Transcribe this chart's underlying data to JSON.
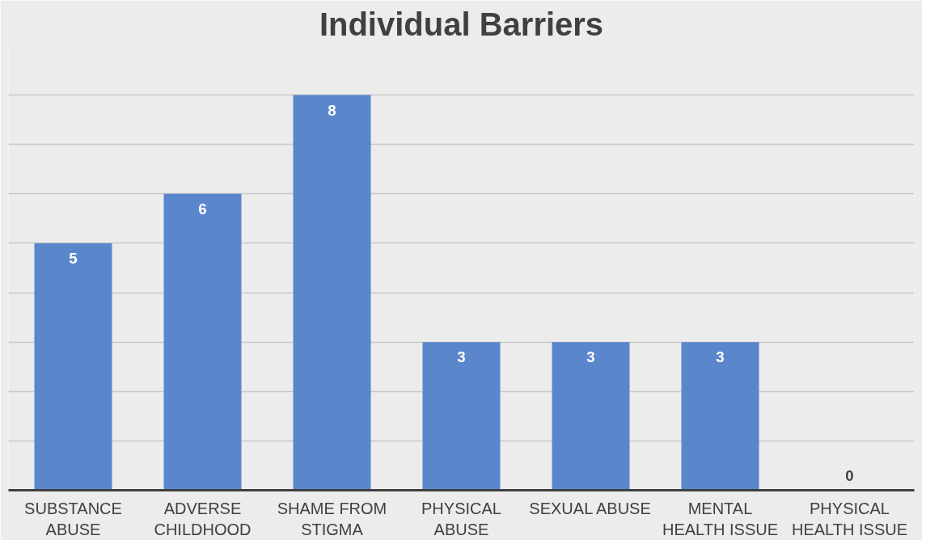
{
  "chart_data": {
    "type": "bar",
    "title": "Individual Barriers",
    "categories": [
      "SUBSTANCE\nABUSE",
      "ADVERSE\nCHILDHOOD",
      "SHAME FROM\nSTIGMA",
      "PHYSICAL\nABUSE",
      "SEXUAL ABUSE",
      "MENTAL\nHEALTH ISSUE",
      "PHYSICAL\nHEALTH ISSUE"
    ],
    "values": [
      5,
      6,
      8,
      3,
      3,
      3,
      0
    ],
    "color": "#5a86cc",
    "ylim": [
      0,
      9
    ],
    "yticks": [
      {
        "value": 0,
        "label": null
      },
      {
        "value": 1,
        "label": null
      },
      {
        "value": 2,
        "label": null
      },
      {
        "value": 3,
        "label": null
      },
      {
        "value": 4,
        "label": null
      },
      {
        "value": 5,
        "label": null
      },
      {
        "value": 6,
        "label": null
      },
      {
        "value": 7,
        "label": null
      },
      {
        "value": 8,
        "label": null
      },
      {
        "value": 9,
        "label": null
      }
    ],
    "grid": "y",
    "tick_labels": "x",
    "data_labels": true
  }
}
